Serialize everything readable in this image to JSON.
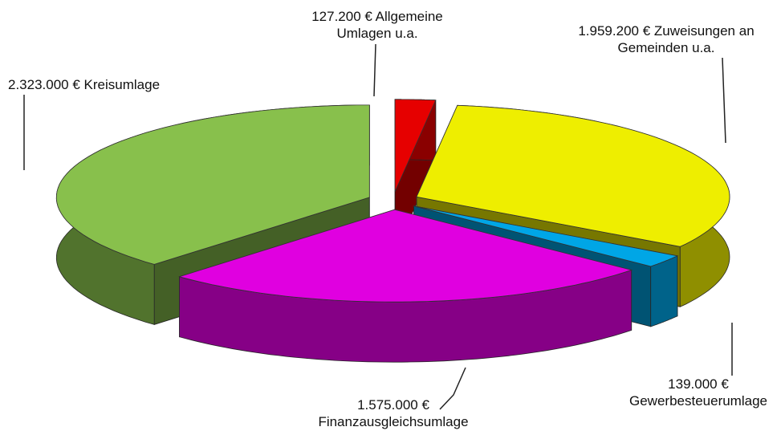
{
  "chart_data": {
    "type": "pie3d",
    "categories": [
      "Allgemeine Umlagen u.a.",
      "Zuweisungen an Gemeinden u.a.",
      "Gewerbesteuerumlage",
      "Finanzausgleichsumlage",
      "Kreisumlage"
    ],
    "values": [
      127200,
      1959200,
      139000,
      1575000,
      2323000
    ],
    "value_labels": [
      "127.200 €",
      "1.959.200 €",
      "139.000 €",
      "1.575.000 €",
      "2.323.000 €"
    ],
    "colors": [
      "#e60000",
      "#eeee00",
      "#00a6e6",
      "#e000e0",
      "#88c04c"
    ]
  }
}
